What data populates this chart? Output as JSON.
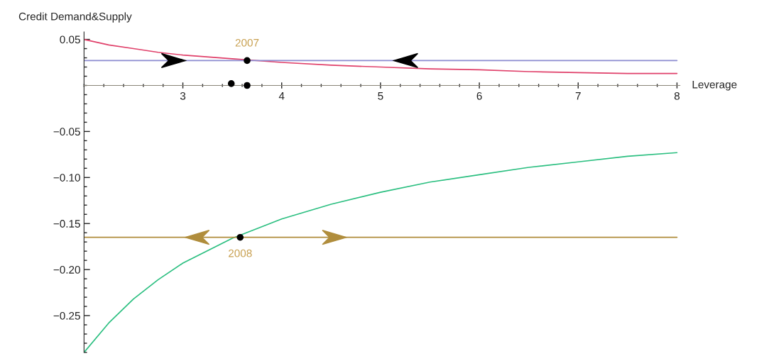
{
  "chart_data": {
    "type": "line",
    "ylabel": "Credit Demand&Supply",
    "xlabel": "Leverage",
    "xlim": [
      2,
      8.03
    ],
    "ylim": [
      -0.29,
      0.058
    ],
    "xticks": [
      3,
      4,
      5,
      6,
      7,
      8
    ],
    "yticks": [
      {
        "value": 0.05,
        "label": "0.05"
      },
      {
        "value": -0.05,
        "label": "−0.05"
      },
      {
        "value": -0.1,
        "label": "−0.10"
      },
      {
        "value": -0.15,
        "label": "−0.15"
      },
      {
        "value": -0.2,
        "label": "−0.20"
      },
      {
        "value": -0.25,
        "label": "−0.25"
      }
    ],
    "grid": false,
    "series": [
      {
        "color": "#e0406a",
        "x": [
          2,
          2.25,
          2.5,
          2.75,
          3,
          3.5,
          4,
          4.5,
          5,
          5.5,
          6,
          6.5,
          7,
          7.5,
          8
        ],
        "values": [
          0.05,
          0.044,
          0.04,
          0.036,
          0.033,
          0.029,
          0.025,
          0.022,
          0.02,
          0.018,
          0.017,
          0.015,
          0.014,
          0.013,
          0.013
        ]
      },
      {
        "color": "#8c8cd0",
        "x": [
          2,
          8
        ],
        "values": [
          0.027,
          0.027
        ]
      },
      {
        "color": "#2bbf80",
        "x": [
          2,
          2.25,
          2.5,
          2.75,
          3,
          3.5,
          4,
          4.5,
          5,
          5.5,
          6,
          6.5,
          7,
          7.5,
          8
        ],
        "values": [
          -0.29,
          -0.258,
          -0.232,
          -0.211,
          -0.193,
          -0.166,
          -0.145,
          -0.129,
          -0.116,
          -0.105,
          -0.097,
          -0.089,
          -0.083,
          -0.077,
          -0.073
        ]
      },
      {
        "color": "#b08d3c",
        "x": [
          2,
          8
        ],
        "values": [
          -0.165,
          -0.165
        ]
      },
      {
        "type": "scatter",
        "color": "#000000",
        "x": [
          3.65,
          3.49,
          3.65,
          3.58
        ],
        "values": [
          0.027,
          0.002,
          0,
          -0.165
        ]
      }
    ],
    "annotations": [
      {
        "text": "2007",
        "x": 3.65,
        "y": 0.027
      },
      {
        "text": "2008",
        "x": 3.58,
        "y": -0.165
      }
    ]
  }
}
